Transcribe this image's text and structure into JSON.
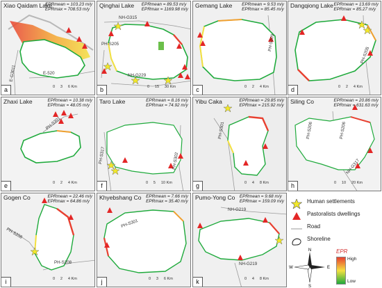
{
  "panels": [
    {
      "id": "a",
      "title": "Xiao Qaidam Lake",
      "epr_mean": "EPRmean = 103.23 m/y",
      "epr_max": "EPRmax = 708.53 m/y",
      "letter": "a",
      "roads": [
        "E-G3011",
        "E-520"
      ],
      "scale": [
        "0",
        "3",
        "6 Km"
      ]
    },
    {
      "id": "b",
      "title": "Qinghai Lake",
      "epr_mean": "EPRmean = 89.53 m/y",
      "epr_max": "EPRmax = 1169.98 m/y",
      "letter": "b",
      "roads": [
        "NH-G315",
        "PH-S205",
        "NH-G229"
      ],
      "scale": [
        "0",
        "15",
        "30 Km"
      ]
    },
    {
      "id": "c",
      "title": "Gemang Lake",
      "epr_mean": "EPRmean = 9.53 m/y",
      "epr_max": "EPRmax = 85.45 m/y",
      "letter": "c",
      "roads": [
        "PH-S209"
      ],
      "scale": [
        "0",
        "2",
        "4 Km"
      ]
    },
    {
      "id": "d",
      "title": "Dangqiong Lake",
      "epr_mean": "EPRmean = 13.69 m/y",
      "epr_max": "EPRmax = 85.27 m/y",
      "letter": "d",
      "roads": [
        "PH-S205"
      ],
      "scale": [
        "0",
        "2",
        "4 Km"
      ]
    },
    {
      "id": "e",
      "title": "Zhaxi Lake",
      "epr_mean": "EPRmean = 10.38 m/y",
      "epr_max": "EPRmax = 48.05 m/y",
      "letter": "e",
      "roads": [
        "PH-S301"
      ],
      "scale": [
        "0",
        "2",
        "4 Km"
      ]
    },
    {
      "id": "f",
      "title": "Taro Lake",
      "epr_mean": "EPRmean = 8.16 m/y",
      "epr_max": "EPRmax = 74.92 m/y",
      "letter": "f",
      "roads": [
        "PH-S317",
        "PH-S302"
      ],
      "scale": [
        "0",
        "5",
        "10 Km"
      ]
    },
    {
      "id": "g",
      "title": "Yibu Caka",
      "epr_mean": "EPRmean = 29.85 m/y",
      "epr_max": "EPRmax = 215.92 m/y",
      "letter": "g",
      "roads": [
        "PH-S301"
      ],
      "scale": [
        "0",
        "4",
        "8 Km"
      ]
    },
    {
      "id": "h",
      "title": "Siling Co",
      "epr_mean": "EPRmean = 20.86 m/y",
      "epr_max": "EPRmax = 631.63 m/y",
      "letter": "h",
      "roads": [
        "PH-S206",
        "PH-S206",
        "NH-G317"
      ],
      "scale": [
        "0",
        "10",
        "20 Km"
      ]
    },
    {
      "id": "i",
      "title": "Gogen Co",
      "epr_mean": "EPRmean = 22.46 m/y",
      "epr_max": "EPRmax = 64.86 m/y",
      "letter": "i",
      "roads": [
        "PH-S208",
        "PH-S208"
      ],
      "scale": [
        "0",
        "2",
        "4 Km"
      ]
    },
    {
      "id": "j",
      "title": "Khyebshang Co",
      "epr_mean": "EPRmean = 7.66 m/y",
      "epr_max": "EPRmax = 35.40 m/y",
      "letter": "j",
      "roads": [
        "PH-S301"
      ],
      "scale": [
        "0",
        "3",
        "6 Km"
      ]
    },
    {
      "id": "k",
      "title": "Pumo-Yong Co",
      "epr_mean": "EPRmean = 9.68 m/y",
      "epr_max": "EPRmax = 159.09 m/y",
      "letter": "k",
      "roads": [
        "NH-G219",
        "NH-G219"
      ],
      "scale": [
        "0",
        "4",
        "8 Km"
      ]
    }
  ],
  "legend": {
    "items": [
      "Human settlements",
      "Pastoralists dwellings",
      "Road",
      "Shoreline"
    ],
    "epr_title": "EPR",
    "epr_high": "High",
    "epr_low": "Low",
    "compass": [
      "N",
      "E",
      "S",
      "W"
    ]
  },
  "colors": {
    "settlement": "#f2e82a",
    "dwelling": "#e32626",
    "shoreline_low": "#1faa3c",
    "shoreline_mid": "#f4e040",
    "shoreline_high": "#e84030",
    "road": "#9a9a9a"
  }
}
